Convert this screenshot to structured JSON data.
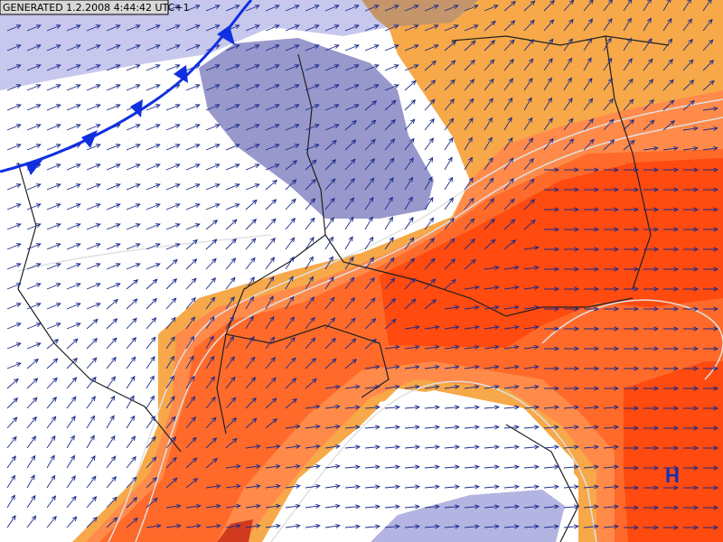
{
  "header": {
    "generated": "GENERATED 1.2.2008 4:44:42 UTC+1"
  },
  "labels": {
    "high_pressure": "H"
  }
}
